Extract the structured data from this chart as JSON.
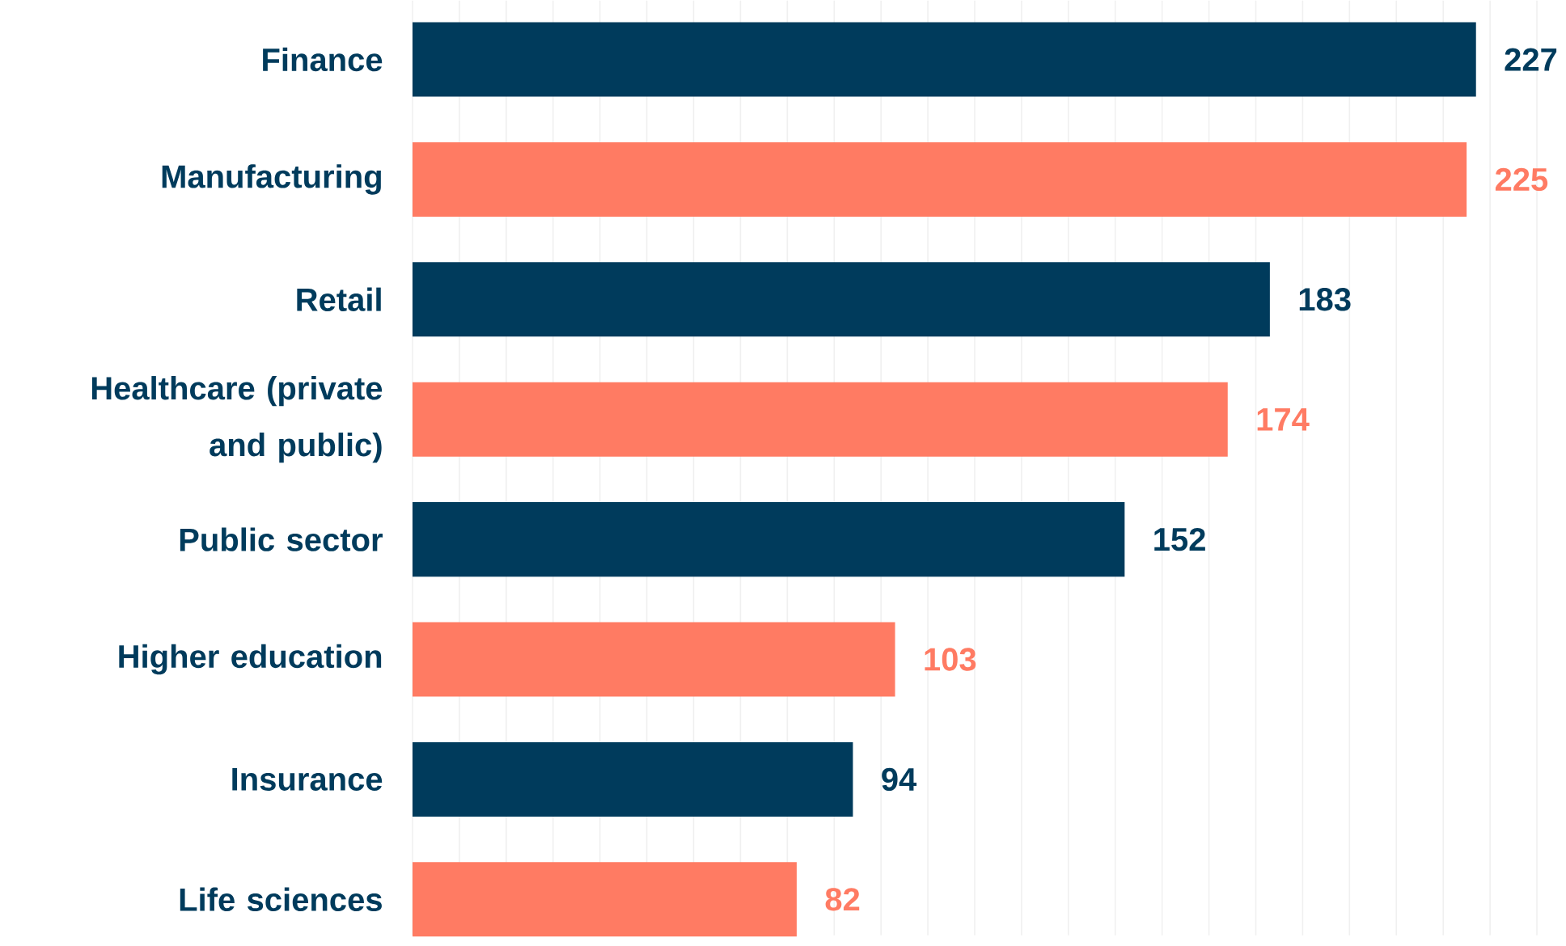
{
  "chart_data": {
    "type": "bar",
    "orientation": "horizontal",
    "categories": [
      "Finance",
      "Manufacturing",
      "Retail",
      "Healthcare (private and public)",
      "Public sector",
      "Higher education",
      "Insurance",
      "Life sciences"
    ],
    "values": [
      227,
      225,
      183,
      174,
      152,
      103,
      94,
      82
    ],
    "colors": [
      "#003b5c",
      "#ff7b63",
      "#003b5c",
      "#ff7b63",
      "#003b5c",
      "#ff7b63",
      "#003b5c",
      "#ff7b63"
    ],
    "data_labels": true,
    "grid": "x",
    "xlim": [
      0,
      240
    ],
    "xticks": [
      {
        "value": 0,
        "label": null
      },
      {
        "value": 10,
        "label": null
      },
      {
        "value": 20,
        "label": null
      },
      {
        "value": 30,
        "label": null
      },
      {
        "value": 40,
        "label": null
      },
      {
        "value": 50,
        "label": null
      },
      {
        "value": 60,
        "label": null
      },
      {
        "value": 70,
        "label": null
      },
      {
        "value": 80,
        "label": null
      },
      {
        "value": 90,
        "label": null
      },
      {
        "value": 100,
        "label": null
      },
      {
        "value": 110,
        "label": null
      },
      {
        "value": 120,
        "label": null
      },
      {
        "value": 130,
        "label": null
      },
      {
        "value": 140,
        "label": null
      },
      {
        "value": 150,
        "label": null
      },
      {
        "value": 160,
        "label": null
      },
      {
        "value": 170,
        "label": null
      },
      {
        "value": 180,
        "label": null
      },
      {
        "value": 190,
        "label": null
      },
      {
        "value": 200,
        "label": null
      },
      {
        "value": 210,
        "label": null
      },
      {
        "value": 220,
        "label": null
      },
      {
        "value": 230,
        "label": null
      },
      {
        "value": 240,
        "label": null
      }
    ],
    "tick_labels": "y"
  }
}
